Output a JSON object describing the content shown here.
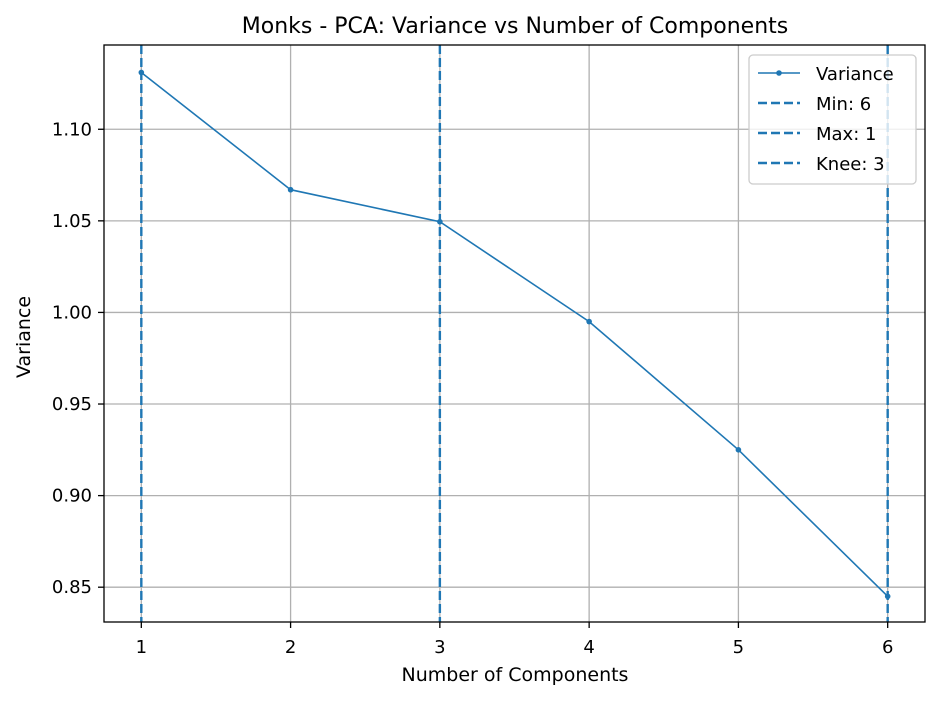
{
  "chart_data": {
    "type": "line",
    "title": "Monks - PCA: Variance vs Number of Components",
    "xlabel": "Number of Components",
    "ylabel": "Variance",
    "x": [
      1,
      2,
      3,
      4,
      5,
      6
    ],
    "series": [
      {
        "name": "Variance",
        "values": [
          1.131,
          1.067,
          1.0495,
          0.995,
          0.925,
          0.845
        ],
        "color": "#1f77b4"
      }
    ],
    "xlim": [
      0.75,
      6.25
    ],
    "ylim": [
      0.831,
      1.146
    ],
    "xticks": [
      1,
      2,
      3,
      4,
      5,
      6
    ],
    "xtick_labels": [
      "1",
      "2",
      "3",
      "4",
      "5",
      "6"
    ],
    "yticks": [
      0.85,
      0.9,
      0.95,
      1.0,
      1.05,
      1.1
    ],
    "ytick_labels": [
      "0.85",
      "0.90",
      "0.95",
      "1.00",
      "1.05",
      "1.10"
    ],
    "vlines": [
      {
        "label": "Min: 6",
        "x": 6,
        "color": "#1f77b4",
        "style": "dashed"
      },
      {
        "label": "Max: 1",
        "x": 1,
        "color": "#1f77b4",
        "style": "dashed"
      },
      {
        "label": "Knee: 3",
        "x": 3,
        "color": "#1f77b4",
        "style": "dashed"
      }
    ],
    "grid": true,
    "legend_position": "top-right",
    "grid_color": "#b0b0b0",
    "axis_color": "#000000"
  }
}
